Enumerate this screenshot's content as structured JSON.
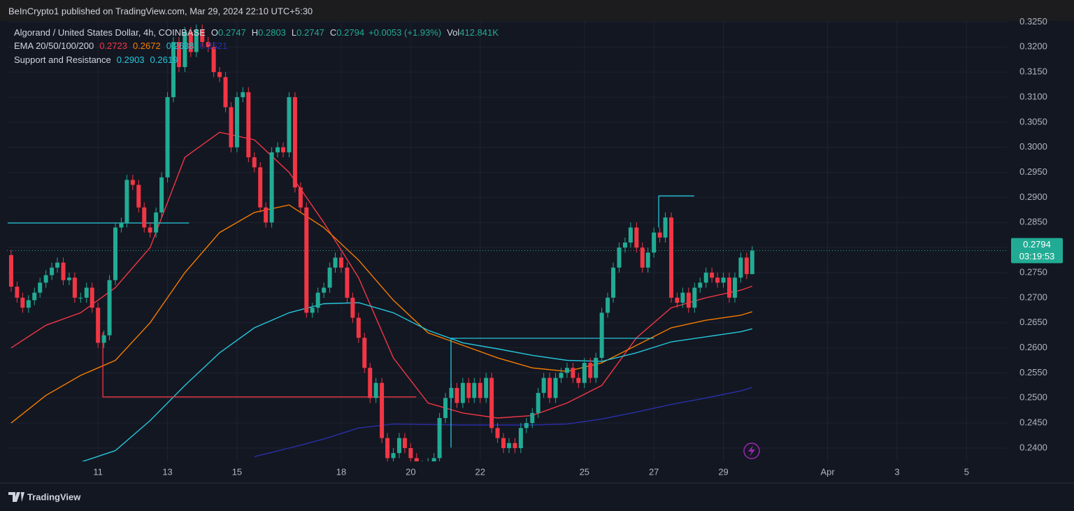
{
  "chart_data": {
    "type": "candlestick",
    "header": "BeInCrypto1 published on TradingView.com, Mar 29, 2024 22:10 UTC+5:30",
    "title": "Algorand / United States Dollar, 4h, COINBASE",
    "ohlc_labels": [
      "O",
      "H",
      "L",
      "C"
    ],
    "change": "+0.0053 (+1.93%)",
    "volume_label": "Vol",
    "volume": "412.841K",
    "up_color": "#22ab94",
    "down_color": "#f23645",
    "x": [
      8.5,
      8.67,
      8.83,
      9,
      9.17,
      9.33,
      9.5,
      9.67,
      9.83,
      10,
      10.17,
      10.33,
      10.5,
      10.67,
      10.83,
      11,
      11.17,
      11.33,
      11.5,
      11.67,
      11.83,
      12,
      12.17,
      12.33,
      12.5,
      12.67,
      12.83,
      13,
      13.17,
      13.33,
      13.5,
      13.67,
      13.83,
      14,
      14.17,
      14.33,
      14.5,
      14.67,
      14.83,
      15,
      15.17,
      15.33,
      15.5,
      15.67,
      15.83,
      16,
      16.17,
      16.33,
      16.5,
      16.67,
      16.83,
      17,
      17.17,
      17.33,
      17.5,
      17.67,
      17.83,
      18,
      18.17,
      18.33,
      18.5,
      18.67,
      18.83,
      19,
      19.17,
      19.33,
      19.5,
      19.67,
      19.83,
      20,
      20.17,
      20.33,
      20.5,
      20.67,
      20.83,
      21,
      21.17,
      21.33,
      21.5,
      21.67,
      21.83,
      22,
      22.17,
      22.33,
      22.5,
      22.67,
      22.83,
      23,
      23.17,
      23.33,
      23.5,
      23.67,
      23.83,
      24,
      24.17,
      24.33,
      24.5,
      24.67,
      24.83,
      25,
      25.17,
      25.33,
      25.5,
      25.67,
      25.83,
      26,
      26.17,
      26.33,
      26.5,
      26.67,
      26.83,
      27,
      27.17,
      27.33,
      27.5,
      27.67,
      27.83,
      28,
      28.17,
      28.33,
      28.5,
      28.67,
      28.83,
      29,
      29.17,
      29.33,
      29.5,
      29.67,
      29.83
    ],
    "values": [
      [
        0.2785,
        0.2795,
        0.2712,
        0.2722
      ],
      [
        0.2722,
        0.2732,
        0.269,
        0.27
      ],
      [
        0.27,
        0.271,
        0.267,
        0.268
      ],
      [
        0.268,
        0.2705,
        0.267,
        0.2695
      ],
      [
        0.2695,
        0.272,
        0.2685,
        0.271
      ],
      [
        0.271,
        0.274,
        0.27,
        0.273
      ],
      [
        0.273,
        0.2755,
        0.272,
        0.2745
      ],
      [
        0.2745,
        0.277,
        0.2735,
        0.276
      ],
      [
        0.276,
        0.278,
        0.275,
        0.277
      ],
      [
        0.277,
        0.278,
        0.2725,
        0.2735
      ],
      [
        0.2735,
        0.275,
        0.2725,
        0.274
      ],
      [
        0.274,
        0.275,
        0.269,
        0.27
      ],
      [
        0.27,
        0.271,
        0.269,
        0.27
      ],
      [
        0.27,
        0.273,
        0.269,
        0.272
      ],
      [
        0.272,
        0.273,
        0.267,
        0.268
      ],
      [
        0.268,
        0.269,
        0.26,
        0.261
      ],
      [
        0.261,
        0.2635,
        0.26,
        0.2625
      ],
      [
        0.2625,
        0.2745,
        0.2615,
        0.2735
      ],
      [
        0.2735,
        0.285,
        0.2725,
        0.284
      ],
      [
        0.284,
        0.286,
        0.283,
        0.285
      ],
      [
        0.285,
        0.2945,
        0.284,
        0.2935
      ],
      [
        0.2935,
        0.2945,
        0.2915,
        0.2925
      ],
      [
        0.2925,
        0.2935,
        0.287,
        0.288
      ],
      [
        0.288,
        0.289,
        0.283,
        0.284
      ],
      [
        0.284,
        0.285,
        0.282,
        0.283
      ],
      [
        0.283,
        0.288,
        0.282,
        0.287
      ],
      [
        0.287,
        0.295,
        0.286,
        0.294
      ],
      [
        0.294,
        0.311,
        0.293,
        0.31
      ],
      [
        0.31,
        0.322,
        0.309,
        0.321
      ],
      [
        0.321,
        0.322,
        0.315,
        0.316
      ],
      [
        0.316,
        0.324,
        0.315,
        0.323
      ],
      [
        0.323,
        0.324,
        0.318,
        0.319
      ],
      [
        0.319,
        0.3245,
        0.318,
        0.3235
      ],
      [
        0.3235,
        0.3245,
        0.32,
        0.321
      ],
      [
        0.321,
        0.322,
        0.319,
        0.32
      ],
      [
        0.32,
        0.321,
        0.314,
        0.315
      ],
      [
        0.315,
        0.316,
        0.313,
        0.314
      ],
      [
        0.314,
        0.315,
        0.307,
        0.308
      ],
      [
        0.308,
        0.309,
        0.299,
        0.3
      ],
      [
        0.3,
        0.311,
        0.299,
        0.31
      ],
      [
        0.31,
        0.312,
        0.309,
        0.311
      ],
      [
        0.311,
        0.312,
        0.297,
        0.298
      ],
      [
        0.298,
        0.299,
        0.295,
        0.296
      ],
      [
        0.296,
        0.297,
        0.287,
        0.288
      ],
      [
        0.288,
        0.289,
        0.284,
        0.285
      ],
      [
        0.285,
        0.3,
        0.284,
        0.299
      ],
      [
        0.299,
        0.301,
        0.298,
        0.3
      ],
      [
        0.3,
        0.301,
        0.298,
        0.299
      ],
      [
        0.299,
        0.311,
        0.298,
        0.31
      ],
      [
        0.31,
        0.311,
        0.291,
        0.292
      ],
      [
        0.292,
        0.293,
        0.287,
        0.288
      ],
      [
        0.288,
        0.289,
        0.266,
        0.267
      ],
      [
        0.267,
        0.269,
        0.266,
        0.268
      ],
      [
        0.268,
        0.272,
        0.267,
        0.271
      ],
      [
        0.271,
        0.273,
        0.27,
        0.272
      ],
      [
        0.272,
        0.277,
        0.271,
        0.276
      ],
      [
        0.276,
        0.279,
        0.275,
        0.278
      ],
      [
        0.278,
        0.279,
        0.275,
        0.276
      ],
      [
        0.276,
        0.277,
        0.269,
        0.27
      ],
      [
        0.27,
        0.271,
        0.265,
        0.266
      ],
      [
        0.266,
        0.267,
        0.261,
        0.262
      ],
      [
        0.262,
        0.263,
        0.255,
        0.256
      ],
      [
        0.256,
        0.257,
        0.249,
        0.25
      ],
      [
        0.25,
        0.254,
        0.249,
        0.253
      ],
      [
        0.253,
        0.254,
        0.241,
        0.242
      ],
      [
        0.242,
        0.243,
        0.237,
        0.238
      ],
      [
        0.238,
        0.24,
        0.237,
        0.239
      ],
      [
        0.239,
        0.243,
        0.238,
        0.242
      ],
      [
        0.242,
        0.243,
        0.239,
        0.24
      ],
      [
        0.24,
        0.241,
        0.237,
        0.238
      ],
      [
        0.238,
        0.239,
        0.235,
        0.236
      ],
      [
        0.236,
        0.2375,
        0.235,
        0.2365
      ],
      [
        0.2365,
        0.238,
        0.2355,
        0.237
      ],
      [
        0.237,
        0.239,
        0.236,
        0.238
      ],
      [
        0.238,
        0.247,
        0.237,
        0.246
      ],
      [
        0.246,
        0.251,
        0.245,
        0.25
      ],
      [
        0.25,
        0.253,
        0.249,
        0.252
      ],
      [
        0.252,
        0.253,
        0.248,
        0.249
      ],
      [
        0.249,
        0.254,
        0.248,
        0.253
      ],
      [
        0.253,
        0.254,
        0.249,
        0.25
      ],
      [
        0.25,
        0.254,
        0.249,
        0.253
      ],
      [
        0.253,
        0.254,
        0.249,
        0.25
      ],
      [
        0.25,
        0.255,
        0.249,
        0.254
      ],
      [
        0.254,
        0.255,
        0.243,
        0.244
      ],
      [
        0.244,
        0.245,
        0.241,
        0.242
      ],
      [
        0.242,
        0.243,
        0.239,
        0.24
      ],
      [
        0.24,
        0.242,
        0.239,
        0.241
      ],
      [
        0.241,
        0.242,
        0.239,
        0.24
      ],
      [
        0.24,
        0.245,
        0.239,
        0.244
      ],
      [
        0.244,
        0.246,
        0.243,
        0.245
      ],
      [
        0.245,
        0.248,
        0.244,
        0.247
      ],
      [
        0.247,
        0.252,
        0.246,
        0.251
      ],
      [
        0.251,
        0.255,
        0.25,
        0.254
      ],
      [
        0.254,
        0.255,
        0.249,
        0.25
      ],
      [
        0.25,
        0.255,
        0.249,
        0.254
      ],
      [
        0.254,
        0.256,
        0.253,
        0.255
      ],
      [
        0.255,
        0.257,
        0.254,
        0.256
      ],
      [
        0.256,
        0.257,
        0.253,
        0.254
      ],
      [
        0.254,
        0.255,
        0.252,
        0.253
      ],
      [
        0.253,
        0.258,
        0.252,
        0.257
      ],
      [
        0.257,
        0.258,
        0.253,
        0.254
      ],
      [
        0.254,
        0.259,
        0.253,
        0.258
      ],
      [
        0.258,
        0.268,
        0.257,
        0.267
      ],
      [
        0.267,
        0.271,
        0.266,
        0.27
      ],
      [
        0.27,
        0.277,
        0.269,
        0.276
      ],
      [
        0.276,
        0.281,
        0.275,
        0.28
      ],
      [
        0.28,
        0.282,
        0.279,
        0.281
      ],
      [
        0.281,
        0.285,
        0.28,
        0.284
      ],
      [
        0.284,
        0.285,
        0.279,
        0.28
      ],
      [
        0.28,
        0.281,
        0.275,
        0.276
      ],
      [
        0.276,
        0.28,
        0.275,
        0.279
      ],
      [
        0.279,
        0.284,
        0.278,
        0.283
      ],
      [
        0.283,
        0.284,
        0.281,
        0.282
      ],
      [
        0.282,
        0.287,
        0.281,
        0.286
      ],
      [
        0.286,
        0.287,
        0.269,
        0.27
      ],
      [
        0.27,
        0.271,
        0.268,
        0.269
      ],
      [
        0.269,
        0.272,
        0.268,
        0.271
      ],
      [
        0.271,
        0.272,
        0.267,
        0.268
      ],
      [
        0.268,
        0.273,
        0.267,
        0.272
      ],
      [
        0.272,
        0.274,
        0.271,
        0.273
      ],
      [
        0.273,
        0.276,
        0.272,
        0.275
      ],
      [
        0.275,
        0.276,
        0.273,
        0.274
      ],
      [
        0.274,
        0.275,
        0.272,
        0.273
      ],
      [
        0.273,
        0.275,
        0.272,
        0.274
      ],
      [
        0.274,
        0.275,
        0.269,
        0.27
      ],
      [
        0.27,
        0.275,
        0.269,
        0.274
      ],
      [
        0.274,
        0.279,
        0.273,
        0.278
      ],
      [
        0.278,
        0.279,
        0.2737,
        0.2747
      ],
      [
        0.2747,
        0.2803,
        0.2747,
        0.2794
      ]
    ],
    "ema_label": "EMA 20/50/100/200",
    "emas": [
      {
        "color": "#f23645",
        "x": [
          8.5,
          9.5,
          10.5,
          11.5,
          12.5,
          13.5,
          14.5,
          15.5,
          16.5,
          17.5,
          18.5,
          19.5,
          20.5,
          21.5,
          22.5,
          23.5,
          24.5,
          25.5,
          26.5,
          27.5,
          28.5,
          29.5,
          29.83
        ],
        "values": [
          0.26,
          0.2645,
          0.267,
          0.272,
          0.28,
          0.298,
          0.303,
          0.3015,
          0.295,
          0.285,
          0.274,
          0.258,
          0.249,
          0.247,
          0.246,
          0.2465,
          0.249,
          0.2525,
          0.262,
          0.268,
          0.27,
          0.2715,
          0.2723
        ]
      },
      {
        "color": "#f57c00",
        "x": [
          8.5,
          9.5,
          10.5,
          11.5,
          12.5,
          13.5,
          14.5,
          15.5,
          16.5,
          17.5,
          18.5,
          19.5,
          20.5,
          21.5,
          22.5,
          23.5,
          24.5,
          25.5,
          26.5,
          27.5,
          28.5,
          29.5,
          29.83
        ],
        "values": [
          0.245,
          0.2505,
          0.2545,
          0.2575,
          0.265,
          0.275,
          0.283,
          0.287,
          0.2885,
          0.284,
          0.2775,
          0.2695,
          0.263,
          0.2605,
          0.258,
          0.256,
          0.2553,
          0.257,
          0.2605,
          0.264,
          0.2655,
          0.2665,
          0.2672
        ]
      },
      {
        "color": "#26c6da",
        "x": [
          10.5,
          11.5,
          12.5,
          13.5,
          14.5,
          15.5,
          16.5,
          17.5,
          18.5,
          19.5,
          20.5,
          21.5,
          22.5,
          23.5,
          24.5,
          25.5,
          26.5,
          27.5,
          28.5,
          29.5,
          29.83
        ],
        "values": [
          0.2372,
          0.2395,
          0.2455,
          0.2525,
          0.259,
          0.264,
          0.267,
          0.2688,
          0.269,
          0.267,
          0.2635,
          0.261,
          0.2598,
          0.2585,
          0.2575,
          0.2573,
          0.259,
          0.2612,
          0.2622,
          0.2632,
          0.2638
        ]
      },
      {
        "color": "#2a2fa8",
        "x": [
          15.5,
          16.5,
          17.5,
          18.5,
          19.5,
          20.5,
          21.5,
          22.5,
          23.5,
          24.5,
          25.5,
          26.5,
          27.5,
          28.5,
          29.5,
          29.83
        ],
        "values": [
          0.2383,
          0.24,
          0.2418,
          0.244,
          0.2448,
          0.2447,
          0.2446,
          0.2446,
          0.2446,
          0.2448,
          0.2458,
          0.2472,
          0.2487,
          0.25,
          0.2514,
          0.2521
        ]
      }
    ],
    "sr_label": "Support and Resistance",
    "sr_lines": [
      {
        "color": "#26c6da",
        "x": [
          8.4,
          13.62
        ],
        "values": [
          0.2849,
          0.2849
        ]
      },
      {
        "color": "#f23645",
        "x": [
          11.14,
          11.14,
          20.16
        ],
        "values": [
          0.2631,
          0.2502,
          0.2502
        ]
      },
      {
        "color": "#26c6da",
        "x": [
          21.16,
          21.16,
          27
        ],
        "values": [
          0.2401,
          0.2619,
          0.2619
        ]
      },
      {
        "color": "#26c6da",
        "x": [
          27.14,
          27.14,
          28.16
        ],
        "values": [
          0.284,
          0.2903,
          0.2903
        ]
      }
    ],
    "countdown": "03:19:53",
    "xlim": [
      8.38,
      37.16
    ],
    "ylim": [
      0.23735,
      0.3252
    ],
    "xticks": [
      11,
      13,
      15,
      18,
      20,
      22,
      25,
      27,
      29,
      {
        "value": 32,
        "label": "Apr"
      },
      {
        "value": 34,
        "label": "3"
      },
      {
        "value": 36,
        "label": "5"
      }
    ],
    "yticks": [
      {
        "value": 0.24,
        "label": "0.2400"
      },
      {
        "value": 0.245,
        "label": "0.2450"
      },
      {
        "value": 0.25,
        "label": "0.2500"
      },
      {
        "value": 0.255,
        "label": "0.2550"
      },
      {
        "value": 0.26,
        "label": "0.2600"
      },
      {
        "value": 0.265,
        "label": "0.2650"
      },
      {
        "value": 0.27,
        "label": "0.2700"
      },
      {
        "value": 0.275,
        "label": "0.2750"
      },
      {
        "value": 0.28,
        "label": "0.2800"
      },
      {
        "value": 0.285,
        "label": "0.2850"
      },
      {
        "value": 0.29,
        "label": "0.2900"
      },
      {
        "value": 0.295,
        "label": "0.2950"
      },
      {
        "value": 0.3,
        "label": "0.3000"
      },
      {
        "value": 0.305,
        "label": "0.3050"
      },
      {
        "value": 0.31,
        "label": "0.3100"
      },
      {
        "value": 0.315,
        "label": "0.3150"
      },
      {
        "value": 0.32,
        "label": "0.3200"
      },
      {
        "value": 0.325,
        "label": "0.3250"
      }
    ],
    "grid": true,
    "footer": "TradingView"
  }
}
